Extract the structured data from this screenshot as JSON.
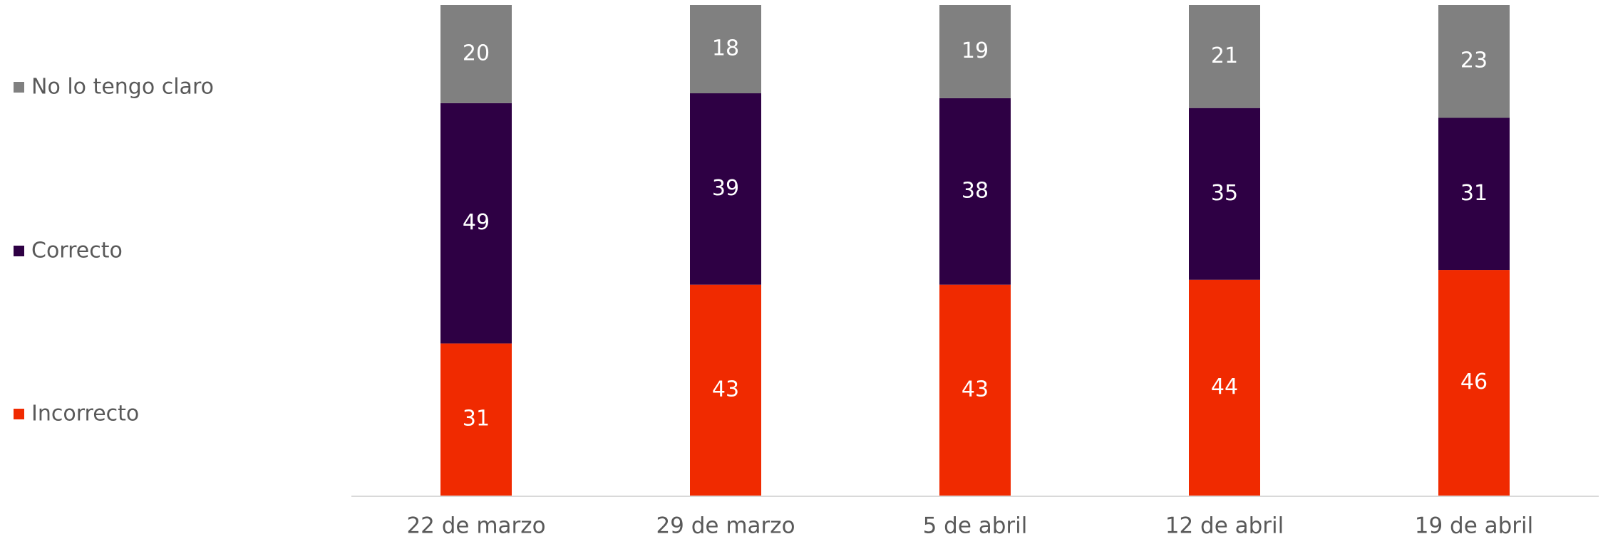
{
  "chart_data": {
    "type": "stacked_bar",
    "categories": [
      "22 de marzo",
      "29 de marzo",
      "5 de abril",
      "12 de abril",
      "19 de abril"
    ],
    "series": [
      {
        "name": "Incorrecto",
        "color": "#f02a00",
        "values": [
          31,
          43,
          43,
          44,
          46
        ]
      },
      {
        "name": "Correcto",
        "color": "#2e0044",
        "values": [
          49,
          39,
          38,
          35,
          31
        ]
      },
      {
        "name": "No lo tengo claro",
        "color": "#808080",
        "values": [
          20,
          18,
          19,
          21,
          23
        ]
      }
    ],
    "ylim": [
      0,
      100
    ],
    "legend": "left"
  }
}
